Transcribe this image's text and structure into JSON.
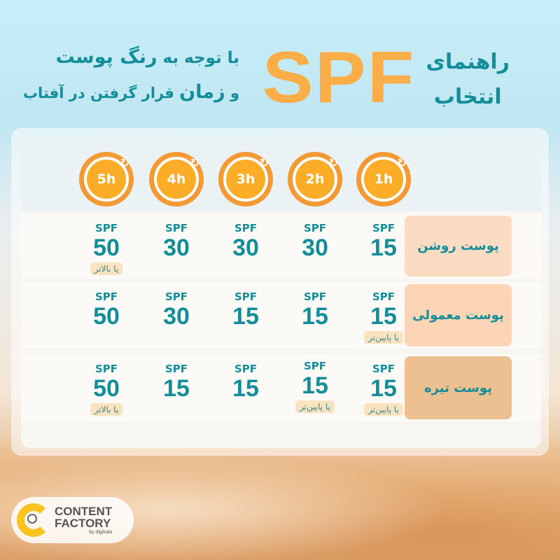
{
  "header": {
    "guide_line1": "راهنمای",
    "guide_line2": "انتخاب",
    "spf": "SPF",
    "sub1_pre": "با توجه به",
    "sub1_bold": "رنگ پوست",
    "sub2_pre": "و",
    "sub2_bold": "زمان",
    "sub2_post": "قرار گرفتن در آفتاب"
  },
  "hours": [
    "1h",
    "2h",
    "3h",
    "4h",
    "5h"
  ],
  "rows": [
    {
      "label": "پوست روشن",
      "color": "#fbdcc3",
      "cells": [
        {
          "spf": "SPF",
          "value": "15",
          "note": ""
        },
        {
          "spf": "SPF",
          "value": "30",
          "note": ""
        },
        {
          "spf": "SPF",
          "value": "30",
          "note": ""
        },
        {
          "spf": "SPF",
          "value": "30",
          "note": ""
        },
        {
          "spf": "SPF",
          "value": "50",
          "note": "یا بالاتر"
        }
      ]
    },
    {
      "label": "پوست معمولی",
      "color": "#fbd5b5",
      "cells": [
        {
          "spf": "SPF",
          "value": "15",
          "note": "یا پایین‌تر"
        },
        {
          "spf": "SPF",
          "value": "15",
          "note": ""
        },
        {
          "spf": "SPF",
          "value": "15",
          "note": ""
        },
        {
          "spf": "SPF",
          "value": "30",
          "note": ""
        },
        {
          "spf": "SPF",
          "value": "50",
          "note": ""
        }
      ]
    },
    {
      "label": "پوست تیره",
      "color": "#ecc091",
      "cells": [
        {
          "spf": "SPF",
          "value": "15",
          "note": "یا پایین‌تر"
        },
        {
          "spf": "SPF",
          "value": "15",
          "note": "یا پایین‌تر"
        },
        {
          "spf": "SPF",
          "value": "15",
          "note": ""
        },
        {
          "spf": "SPF",
          "value": "15",
          "note": ""
        },
        {
          "spf": "SPF",
          "value": "50",
          "note": "یا بالاتر"
        }
      ]
    }
  ],
  "logo": {
    "line1": "CONTENT",
    "line2": "FACTORY",
    "by": "by digikala"
  },
  "colors": {
    "accent": "#138e99",
    "spf_orange": "#fbad47",
    "clock_orange": "#f39a34"
  }
}
